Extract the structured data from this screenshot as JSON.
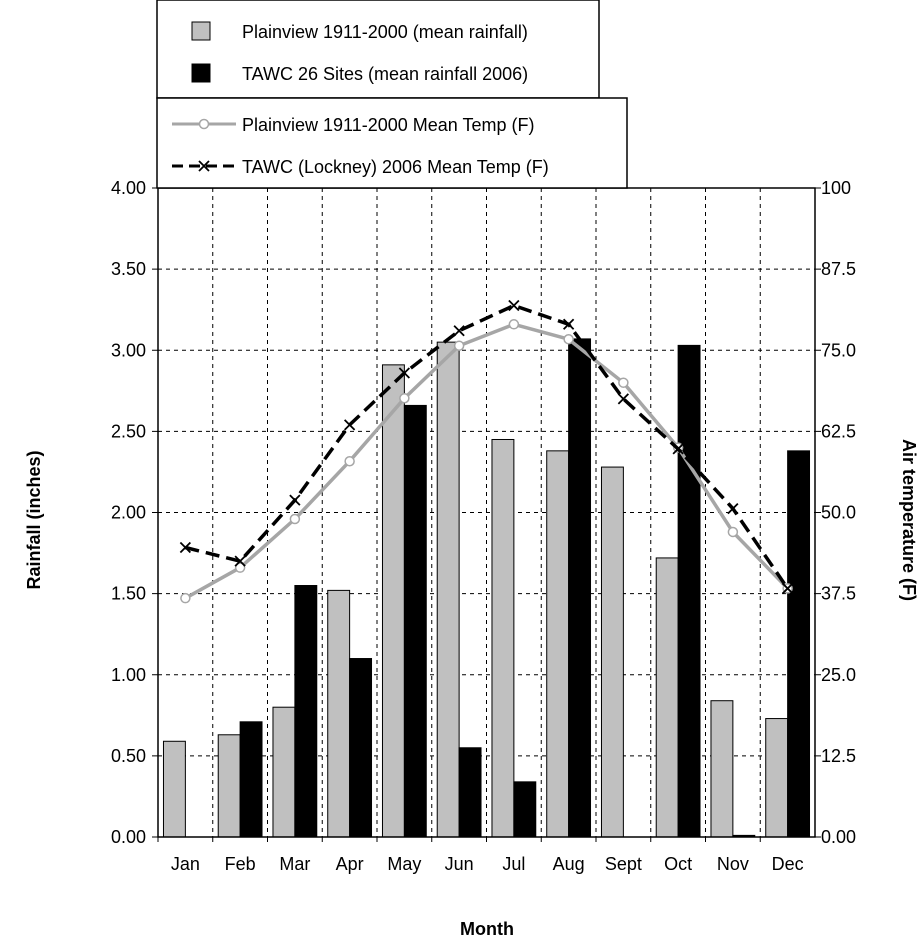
{
  "chart_data": {
    "type": "bar",
    "categories": [
      "Jan",
      "Feb",
      "Mar",
      "Apr",
      "May",
      "Jun",
      "Jul",
      "Aug",
      "Sept",
      "Oct",
      "Nov",
      "Dec"
    ],
    "bar_series": [
      {
        "name": "Plainview 1911-2000 (mean rainfall)",
        "color": "#c0c0c0",
        "values": [
          0.59,
          0.63,
          0.8,
          1.52,
          2.91,
          3.05,
          2.45,
          2.38,
          2.28,
          1.72,
          0.84,
          0.73
        ]
      },
      {
        "name": "TAWC 26 Sites (mean rainfall 2006)",
        "color": "#000000",
        "values": [
          0.0,
          0.71,
          1.55,
          1.1,
          2.66,
          0.55,
          0.34,
          3.07,
          0.0,
          3.03,
          0.01,
          2.38
        ]
      }
    ],
    "line_series": [
      {
        "name": "Plainview 1911-2000 Mean Temp (F)",
        "color": "#a6a6a6",
        "marker": "circle",
        "dash": "solid",
        "values": [
          36.8,
          41.5,
          49.0,
          57.9,
          67.6,
          75.7,
          79.0,
          76.7,
          70.0,
          60.0,
          47.0,
          38.3
        ]
      },
      {
        "name": "TAWC (Lockney) 2006 Mean Temp (F)",
        "color": "#000000",
        "marker": "x",
        "dash": "dashed",
        "values": [
          44.6,
          42.5,
          51.9,
          63.5,
          71.5,
          78.0,
          81.9,
          79.0,
          67.5,
          59.8,
          50.6,
          38.3
        ]
      }
    ],
    "xlabel": "Month",
    "ylabel": "Rainfall (inches)",
    "y2label": "Air temperature (F)",
    "ylim": [
      0,
      4
    ],
    "y2lim": [
      0,
      100
    ],
    "yticks": [
      "0.00",
      "0.50",
      "1.00",
      "1.50",
      "2.00",
      "2.50",
      "3.00",
      "3.50",
      "4.00"
    ],
    "y2ticks": [
      "0.00",
      "12.5",
      "25.0",
      "37.5",
      "50.0",
      "62.5",
      "75.0",
      "87.5",
      "100"
    ],
    "grid": true,
    "legend_placement": "top"
  }
}
